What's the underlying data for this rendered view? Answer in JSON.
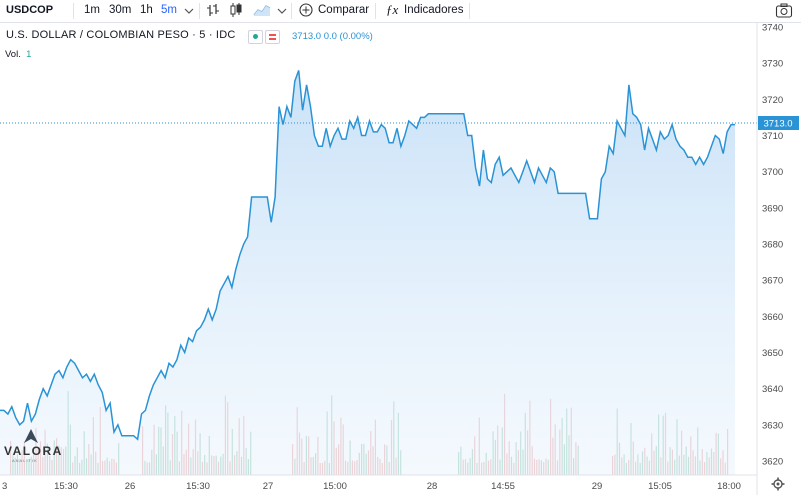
{
  "toolbar": {
    "symbol": "USDCOP",
    "intervals": [
      "1m",
      "30m",
      "1h",
      "5m"
    ],
    "active_interval": "5m",
    "compare_label": "Comparar",
    "indicators_label": "Indicadores",
    "icons": [
      "chevron-down-icon",
      "bar-style-icon",
      "candle-style-icon",
      "area-style-icon",
      "chevron-down-icon",
      "plus-circle-icon",
      "fx-icon",
      "camera-icon"
    ]
  },
  "legend": {
    "title": "U.S. DOLLAR / COLOMBIAN PESO · 5 · IDC",
    "price_text": "3713.0  0.0 (0.00%)",
    "volume_label": "Vol.",
    "volume_value": "1"
  },
  "logo": {
    "name": "VALORA",
    "sub": "ANALITIK"
  },
  "colors": {
    "line": "#2a93d5",
    "area_top": "#c6e0f7",
    "volume_up": "#7fc3a8",
    "volume_down": "#e89a9a",
    "price_tag": "#2a93d5"
  },
  "chart_data": {
    "type": "area",
    "ylim": [
      3617,
      3742
    ],
    "y_ticks": [
      3620,
      3630,
      3640,
      3650,
      3660,
      3670,
      3680,
      3690,
      3700,
      3710,
      3720,
      3730,
      3740
    ],
    "x_ticks": [
      "3",
      "15:30",
      "26",
      "15:30",
      "27",
      "15:00",
      "28",
      "14:55",
      "29",
      "15:05",
      "18:00"
    ],
    "last_price": "3713.0",
    "series": [
      {
        "values": [
          3634,
          3634,
          3633,
          3635,
          3632,
          3630,
          3631,
          3636,
          3631,
          3633,
          3637,
          3640,
          3638,
          3641,
          3644,
          3645,
          3643,
          3646,
          3648,
          3647,
          3645,
          3643,
          3644,
          3642,
          3644,
          3641,
          3639,
          3634,
          3636,
          3628,
          3630,
          3627,
          3627,
          3627,
          3627,
          3626,
          3633,
          3634,
          3638,
          3641,
          3643,
          3645,
          3643,
          3647,
          3646,
          3648,
          3652,
          3650,
          3654,
          3653,
          3656,
          3657,
          3659,
          3662,
          3659,
          3662,
          3667,
          3669,
          3671,
          3668,
          3673,
          3677,
          3680,
          3682,
          3693,
          3693,
          3693,
          3693,
          3693,
          3686,
          3693,
          3718,
          3713,
          3718,
          3715,
          3725,
          3728,
          3717,
          3724,
          3718,
          3710,
          3707,
          3707,
          3712,
          3707,
          3710,
          3712,
          3709,
          3709,
          3714,
          3712,
          3715,
          3710,
          3710,
          3714,
          3711,
          3711,
          3713,
          3712,
          3708,
          3708,
          3712,
          3707,
          3710,
          3714,
          3713,
          3712,
          3715,
          3715,
          3716,
          3716,
          3716,
          3716,
          3716,
          3716,
          3716,
          3716,
          3716,
          3716,
          3710,
          3710,
          3701,
          3696,
          3706,
          3698,
          3697,
          3702,
          3704,
          3699,
          3700,
          3701,
          3699,
          3697,
          3700,
          3703,
          3700,
          3697,
          3701,
          3699,
          3697,
          3701,
          3700,
          3694,
          3694,
          3694,
          3694,
          3694,
          3694,
          3694,
          3694,
          3687,
          3687,
          3687,
          3698,
          3700,
          3707,
          3705,
          3714,
          3712,
          3710,
          3724,
          3716,
          3715,
          3713,
          3706,
          3712,
          3709,
          3706,
          3711,
          3709,
          3710,
          3713,
          3709,
          3707,
          3706,
          3704,
          3704,
          3702,
          3704,
          3702,
          3704,
          3707,
          3710,
          3709,
          3705,
          3711,
          3713,
          3713
        ]
      }
    ]
  }
}
